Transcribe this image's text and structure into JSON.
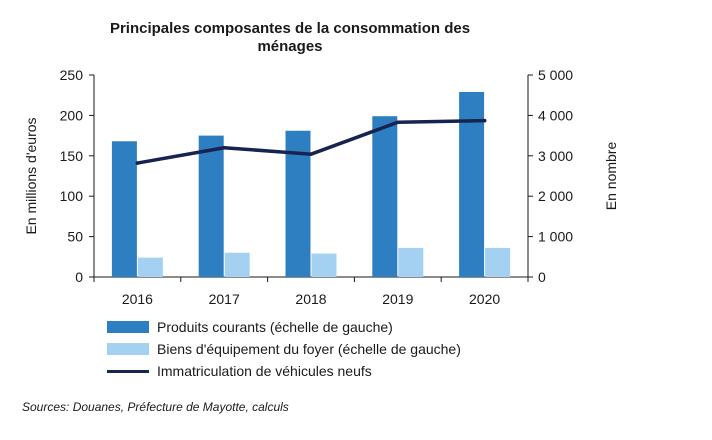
{
  "chart_data": {
    "type": "bar",
    "title_lines": [
      "Principales composantes de la consommation des",
      "ménages"
    ],
    "categories": [
      "2016",
      "2017",
      "2018",
      "2019",
      "2020"
    ],
    "series": [
      {
        "name": "Produits courants (échelle de gauche)",
        "type": "bar",
        "axis": "left",
        "color": "#2e7fc1",
        "values": [
          168,
          175,
          181,
          199,
          229
        ]
      },
      {
        "name": "Biens d'équipement du foyer (échelle de gauche)",
        "type": "bar",
        "axis": "left",
        "color": "#a4d1f2",
        "values": [
          24,
          30,
          29,
          36,
          36
        ]
      },
      {
        "name": "Immatriculation de véhicules neufs",
        "type": "line",
        "axis": "right",
        "color": "#17244f",
        "values": [
          2820,
          3200,
          3040,
          3830,
          3870
        ]
      }
    ],
    "ylabel": "En millions d'euros",
    "ylim": [
      0,
      250
    ],
    "yticks": [
      "0",
      "50",
      "100",
      "150",
      "200",
      "250"
    ],
    "y2label": "En nombre",
    "y2lim": [
      0,
      5000
    ],
    "y2ticks": [
      "0",
      "1 000",
      "2 000",
      "3 000",
      "4 000",
      "5 000"
    ],
    "grid": false,
    "legend_position": "bottom"
  },
  "source": "Sources: Douanes, Préfecture de Mayotte, calculs"
}
